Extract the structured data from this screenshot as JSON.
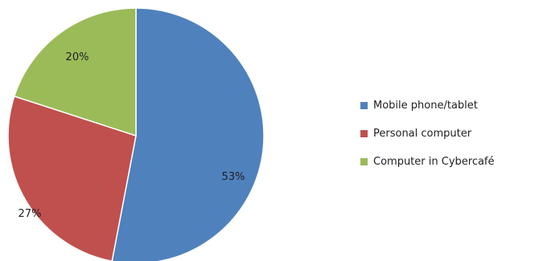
{
  "chart_data": {
    "type": "pie",
    "slices": [
      {
        "label": "Mobile phone/tablet",
        "value": 53,
        "display": "53%",
        "color": "#4f81bd"
      },
      {
        "label": "Personal computer",
        "value": 27,
        "display": "27%",
        "color": "#c0504d"
      },
      {
        "label": "Computer in Cybercafé",
        "value": 20,
        "display": "20%",
        "color": "#9bbb59"
      }
    ],
    "start": "12 o'clock",
    "direction": "clockwise",
    "legend_position": "right"
  }
}
